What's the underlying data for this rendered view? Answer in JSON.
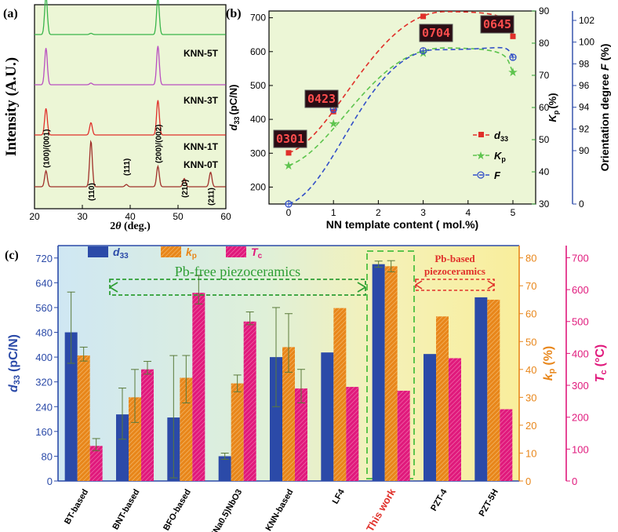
{
  "colors": {
    "green_bg": "#ecf6d6",
    "blue": "#2b4aa8",
    "green": "#39b54a",
    "dk_green": "#2e9e34",
    "orange": "#e8861a",
    "pink": "#e0197c",
    "red": "#e0302a",
    "purple": "#b94fc0",
    "brown": "#a0302a",
    "dash_red": "#e0302a",
    "dash_green": "#5ec44e",
    "dash_blue": "#3350c8",
    "display_bg": "#2a0d14",
    "display_fg": "#ff4d4d"
  },
  "chart_data": [
    {
      "panel": "(a)",
      "type": "line",
      "title": "",
      "xlabel": "2θ (deg.)",
      "ylabel": "Intensity (A.U.)",
      "xlim": [
        20,
        60
      ],
      "xticks": [
        "20",
        "30",
        "40",
        "50",
        "60"
      ],
      "series": [
        {
          "name": "KNN-5T",
          "color": "#39b54a",
          "peaks": [
            [
              22.4,
              0.95
            ],
            [
              31.8,
              0.03
            ],
            [
              45.8,
              0.9
            ]
          ]
        },
        {
          "name": "KNN-3T",
          "color": "#b94fc0",
          "peaks": [
            [
              22.4,
              0.9
            ],
            [
              31.8,
              0.04
            ],
            [
              45.8,
              0.95
            ]
          ]
        },
        {
          "name": "KNN-1T",
          "color": "#e0302a",
          "peaks": [
            [
              22.4,
              0.65
            ],
            [
              31.8,
              0.3
            ],
            [
              45.8,
              0.85
            ]
          ]
        },
        {
          "name": "KNN-0T",
          "color": "#a0302a",
          "peaks": [
            [
              22.4,
              0.35
            ],
            [
              31.8,
              1.0
            ],
            [
              39.2,
              0.05
            ],
            [
              45.8,
              0.45
            ],
            [
              51.3,
              0.18
            ],
            [
              56.8,
              0.32
            ]
          ]
        }
      ],
      "peak_labels": [
        "(100)/(001)",
        "(110)",
        "(111)",
        "(200)/(002)",
        "(210)",
        "(211)"
      ]
    },
    {
      "panel": "(b)",
      "type": "line",
      "xlabel": "NN template content ( mol.%)",
      "ylabel_left": "d33 (pC/N)",
      "ylabel_right1": "Kp (%)",
      "ylabel_right2": "Orientation degree F (%)",
      "x": [
        0,
        1,
        3,
        5
      ],
      "xticks": [
        "0",
        "1",
        "2",
        "3",
        "4",
        "5"
      ],
      "left_ticks": [
        "200",
        "300",
        "400",
        "500",
        "600",
        "700"
      ],
      "ylim_left": [
        150,
        720
      ],
      "kp_ticks": [
        "30",
        "40",
        "50",
        "60",
        "70",
        "80",
        "90"
      ],
      "ylim_kp": [
        30,
        90
      ],
      "f_ticks": [
        "0",
        "90",
        "92",
        "94",
        "96",
        "98",
        "100",
        "102"
      ],
      "series": [
        {
          "name": "d33",
          "color": "#e0302a",
          "values": [
            301,
            423,
            704,
            645
          ]
        },
        {
          "name": "Kp",
          "color": "#5ec44e",
          "values": [
            42,
            55,
            77,
            71
          ]
        },
        {
          "name": "F",
          "color": "#3350c8",
          "values": [
            0,
            93.8,
            99.2,
            98.6
          ]
        }
      ],
      "legend": [
        "d33",
        "Kp",
        "F"
      ],
      "displays": [
        "0301",
        "0423",
        "0704",
        "0645"
      ]
    },
    {
      "panel": "(c)",
      "type": "bar",
      "categories": [
        "BT-based",
        "BNT-based",
        "BFO-based",
        "(K0.5Na0.5)NbO3",
        "KNN-based",
        "LF4",
        "This work",
        "PZT-4",
        "PZT-5H"
      ],
      "series": [
        {
          "name": "d33",
          "color": "#2b4aa8",
          "values": [
            480,
            215,
            205,
            80,
            400,
            415,
            700,
            410,
            593
          ],
          "err_low": [
            380,
            135,
            10,
            70,
            240,
            null,
            690,
            null,
            null
          ],
          "err_high": [
            610,
            300,
            405,
            90,
            560,
            null,
            710,
            null,
            null
          ]
        },
        {
          "name": "kp",
          "color": "#e8861a",
          "values": [
            45,
            30,
            37,
            35,
            48,
            62,
            77,
            59,
            65
          ],
          "err_low": [
            43,
            21,
            28,
            32,
            39,
            null,
            75,
            null,
            null
          ],
          "err_high": [
            48,
            40,
            45,
            38,
            60,
            null,
            79,
            null,
            null
          ]
        },
        {
          "name": "Tc",
          "color": "#e0197c",
          "values": [
            110,
            350,
            590,
            500,
            290,
            295,
            283,
            385,
            225
          ],
          "err_low": [
            95,
            335,
            555,
            490,
            245,
            null,
            null,
            null,
            null
          ],
          "err_high": [
            133,
            375,
            645,
            530,
            350,
            null,
            null,
            null,
            null
          ]
        }
      ],
      "ylabel_left": "d33 (pC/N)",
      "ylabel_kp": "kp (%)",
      "ylabel_tc": "Tc (°C)",
      "ylim_left": [
        0,
        760
      ],
      "left_ticks": [
        "0",
        "80",
        "160",
        "240",
        "320",
        "400",
        "480",
        "560",
        "640",
        "720"
      ],
      "ylim_kp": [
        0,
        84.4
      ],
      "kp_ticks": [
        "0",
        "10",
        "20",
        "30",
        "40",
        "50",
        "60",
        "70",
        "80"
      ],
      "ylim_tc": [
        0,
        738
      ],
      "tc_ticks": [
        "0",
        "100",
        "200",
        "300",
        "400",
        "500",
        "600",
        "700"
      ],
      "legend": [
        "d33",
        "kp",
        "Tc"
      ],
      "annotations": {
        "pb_free": "Pb-free  piezoceramics",
        "pb_based_1": "Pb-based",
        "pb_based_2": "piezoceramics"
      }
    }
  ],
  "labels": {
    "a_panel": "(a)",
    "b_panel": "(b)",
    "c_panel": "(c)",
    "a_ylabel": "Intensity (A.U.)",
    "a_xlabel_pre": "2",
    "a_xlabel_theta": "θ",
    "a_xlabel_post": " (deg.)",
    "b_xlabel": "NN template content ( mol.%)",
    "b_ylabel": "(pC/N)",
    "b_ylabel_d": "d",
    "b_ylabel_sub": "33",
    "b_kp_label": "(%)",
    "b_kp_K": "K",
    "b_kp_sub": "p",
    "b_f_label": "Orientation degree",
    "b_f_F": "F",
    "b_f_unit": "(%)",
    "b_leg_d": "d",
    "b_leg_d_sub": "33",
    "b_leg_k": "K",
    "b_leg_k_sub": "p",
    "b_leg_f": "F",
    "c_y_d": "d",
    "c_y_d_sub": "33",
    "c_y_d_unit": "(pC/N)",
    "c_y_k": "k",
    "c_y_k_sub": "p",
    "c_y_k_unit": "(%)",
    "c_y_t": "T",
    "c_y_t_sub": "c",
    "c_y_t_unit": "(°C)",
    "c_leg_d": "d",
    "c_leg_d_sub": "33",
    "c_leg_k": "k",
    "c_leg_k_sub": "p",
    "c_leg_t": "T",
    "c_leg_t_sub": "c"
  }
}
